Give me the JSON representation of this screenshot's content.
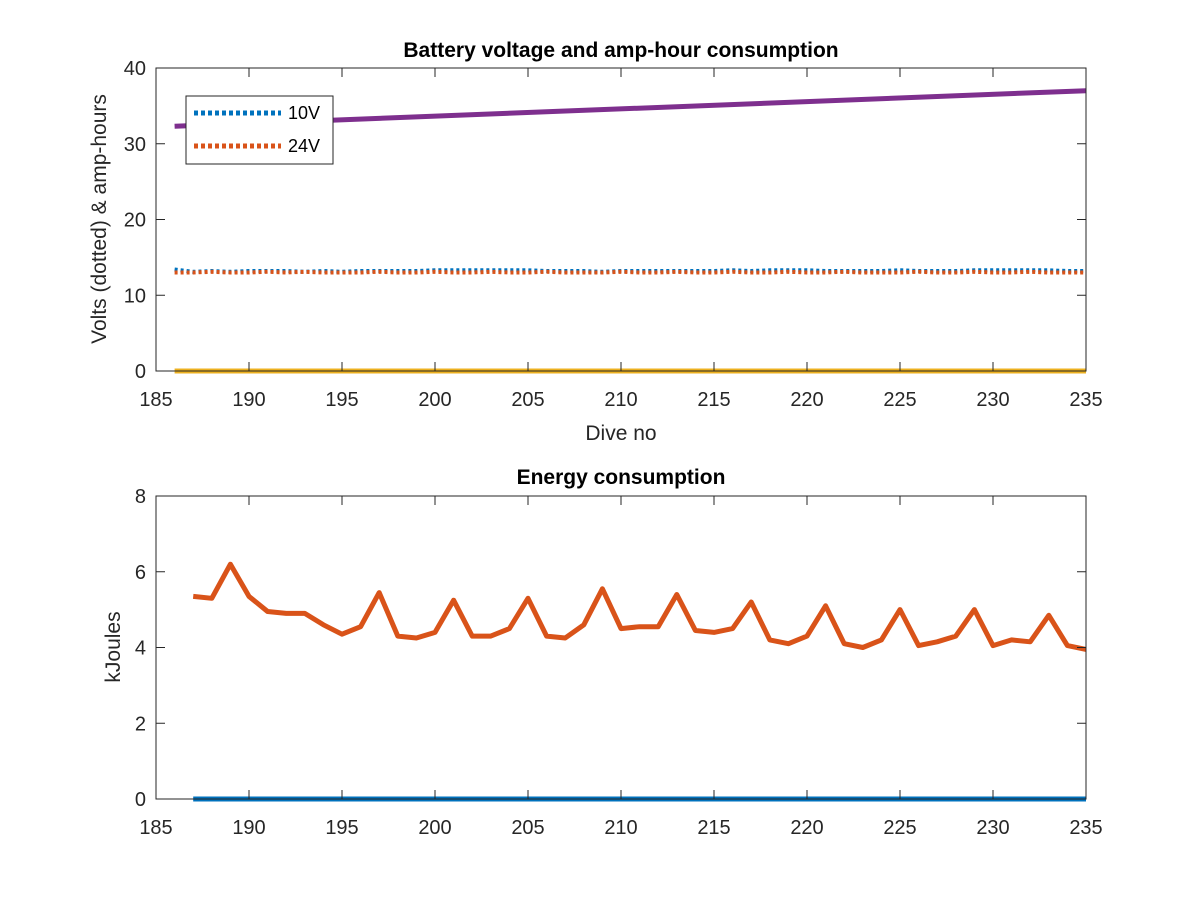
{
  "chart_data": [
    {
      "type": "line",
      "title": "Battery voltage and amp-hour consumption",
      "xlabel": "Dive no",
      "ylabel": "Volts (dotted) & amp-hours",
      "xlim": [
        185,
        235
      ],
      "ylim": [
        0,
        40
      ],
      "xticks": [
        185,
        190,
        195,
        200,
        205,
        210,
        215,
        220,
        225,
        230,
        235
      ],
      "yticks": [
        0,
        10,
        20,
        30,
        40
      ],
      "grid": false,
      "legend_position": "top-left",
      "series": [
        {
          "name": "10V",
          "style": "dotted",
          "color": "#0072BD",
          "x": [
            186,
            187,
            188,
            189,
            190,
            191,
            192,
            193,
            194,
            195,
            196,
            197,
            198,
            199,
            200,
            201,
            202,
            203,
            204,
            205,
            206,
            207,
            208,
            209,
            210,
            211,
            212,
            213,
            214,
            215,
            216,
            217,
            218,
            219,
            220,
            221,
            222,
            223,
            224,
            225,
            226,
            227,
            228,
            229,
            230,
            231,
            232,
            233,
            234,
            235
          ],
          "y": [
            13.4,
            13.1,
            13.2,
            13.1,
            13.2,
            13.2,
            13.2,
            13.1,
            13.2,
            13.1,
            13.2,
            13.2,
            13.2,
            13.2,
            13.3,
            13.3,
            13.3,
            13.3,
            13.3,
            13.3,
            13.2,
            13.2,
            13.2,
            13.1,
            13.2,
            13.2,
            13.2,
            13.2,
            13.2,
            13.2,
            13.3,
            13.2,
            13.3,
            13.3,
            13.3,
            13.2,
            13.2,
            13.2,
            13.2,
            13.3,
            13.2,
            13.2,
            13.2,
            13.3,
            13.3,
            13.3,
            13.3,
            13.3,
            13.2,
            13.2
          ]
        },
        {
          "name": "24V",
          "style": "dotted",
          "color": "#D95319",
          "x": [
            186,
            187,
            188,
            189,
            190,
            191,
            192,
            193,
            194,
            195,
            196,
            197,
            198,
            199,
            200,
            201,
            202,
            203,
            204,
            205,
            206,
            207,
            208,
            209,
            210,
            211,
            212,
            213,
            214,
            215,
            216,
            217,
            218,
            219,
            220,
            221,
            222,
            223,
            224,
            225,
            226,
            227,
            228,
            229,
            230,
            231,
            232,
            233,
            234,
            235
          ],
          "y": [
            13.0,
            13.0,
            13.1,
            13.0,
            13.0,
            13.1,
            13.0,
            13.1,
            13.0,
            13.0,
            13.0,
            13.1,
            13.0,
            13.0,
            13.1,
            13.0,
            13.0,
            13.1,
            13.0,
            13.0,
            13.1,
            13.0,
            13.0,
            13.0,
            13.1,
            13.0,
            13.0,
            13.1,
            13.0,
            13.0,
            13.1,
            13.0,
            13.0,
            13.1,
            13.0,
            13.0,
            13.1,
            13.0,
            13.0,
            13.0,
            13.1,
            13.0,
            13.0,
            13.1,
            13.0,
            13.0,
            13.1,
            13.0,
            13.0,
            13.0
          ]
        },
        {
          "style": "solid",
          "color": "#7E2F8E",
          "x": [
            186,
            235
          ],
          "y": [
            32.3,
            37.0
          ]
        },
        {
          "style": "solid",
          "color": "#EDB120",
          "x": [
            186,
            235
          ],
          "y": [
            0,
            0
          ]
        }
      ]
    },
    {
      "type": "line",
      "title": "Energy consumption",
      "xlabel": "",
      "ylabel": "kJoules",
      "xlim": [
        185,
        235
      ],
      "ylim": [
        0,
        8
      ],
      "xticks": [
        185,
        190,
        195,
        200,
        205,
        210,
        215,
        220,
        225,
        230,
        235
      ],
      "yticks": [
        0,
        2,
        4,
        6,
        8
      ],
      "grid": false,
      "series": [
        {
          "style": "solid",
          "color": "#D95319",
          "x": [
            187,
            188,
            189,
            190,
            191,
            192,
            193,
            194,
            195,
            196,
            197,
            198,
            199,
            200,
            201,
            202,
            203,
            204,
            205,
            206,
            207,
            208,
            209,
            210,
            211,
            212,
            213,
            214,
            215,
            216,
            217,
            218,
            219,
            220,
            221,
            222,
            223,
            224,
            225,
            226,
            227,
            228,
            229,
            230,
            231,
            232,
            233,
            234,
            235
          ],
          "y": [
            5.35,
            5.3,
            6.2,
            5.35,
            4.95,
            4.9,
            4.9,
            4.6,
            4.35,
            4.55,
            5.45,
            4.3,
            4.25,
            4.4,
            5.25,
            4.3,
            4.3,
            4.5,
            5.3,
            4.3,
            4.25,
            4.6,
            5.55,
            4.5,
            4.55,
            4.55,
            5.4,
            4.45,
            4.4,
            4.5,
            5.2,
            4.2,
            4.1,
            4.3,
            5.1,
            4.1,
            4.0,
            4.2,
            5.0,
            4.05,
            4.15,
            4.3,
            5.0,
            4.05,
            4.2,
            4.15,
            4.85,
            4.05,
            3.95
          ]
        },
        {
          "style": "solid",
          "color": "#0072BD",
          "x": [
            187,
            235
          ],
          "y": [
            0,
            0
          ]
        }
      ]
    }
  ]
}
